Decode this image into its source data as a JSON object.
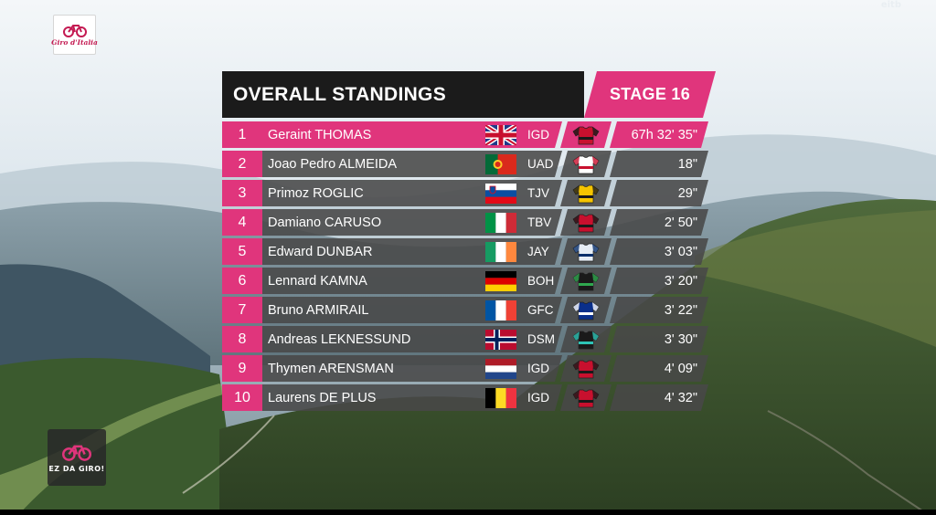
{
  "broadcast": {
    "race_logo_text": "Giro d'Italia",
    "live_ghost_text": "",
    "broadcaster": "eitb",
    "promo_label": "EZ DA GIRO!"
  },
  "board": {
    "title": "OVERALL STANDINGS",
    "stage": "STAGE 16"
  },
  "colors": {
    "accent_pink": "#e0357c",
    "header_black": "#1b1b1b",
    "row_grey": "#484848"
  },
  "standings": [
    {
      "rank": "1",
      "name": "Geraint THOMAS",
      "flag": "flag-gbr",
      "team": "IGD",
      "jersey": "ineos-jersey-icon",
      "time": "67h 32' 35\""
    },
    {
      "rank": "2",
      "name": "Joao Pedro ALMEIDA",
      "flag": "flag-por",
      "team": "UAD",
      "jersey": "uae-jersey-icon",
      "time": "18\""
    },
    {
      "rank": "3",
      "name": "Primoz ROGLIC",
      "flag": "flag-slo",
      "team": "TJV",
      "jersey": "jumbo-jersey-icon",
      "time": "29\""
    },
    {
      "rank": "4",
      "name": "Damiano CARUSO",
      "flag": "flag-ita",
      "team": "TBV",
      "jersey": "bahrain-jersey-icon",
      "time": "2' 50\""
    },
    {
      "rank": "5",
      "name": "Edward DUNBAR",
      "flag": "flag-irl",
      "team": "JAY",
      "jersey": "jayco-jersey-icon",
      "time": "3' 03\""
    },
    {
      "rank": "6",
      "name": "Lennard KAMNA",
      "flag": "flag-ger",
      "team": "BOH",
      "jersey": "bora-jersey-icon",
      "time": "3' 20\""
    },
    {
      "rank": "7",
      "name": "Bruno ARMIRAIL",
      "flag": "flag-fra",
      "team": "GFC",
      "jersey": "groupama-jersey-icon",
      "time": "3' 22\""
    },
    {
      "rank": "8",
      "name": "Andreas LEKNESSUND",
      "flag": "flag-nor",
      "team": "DSM",
      "jersey": "dsm-jersey-icon",
      "time": "3' 30\""
    },
    {
      "rank": "9",
      "name": "Thymen ARENSMAN",
      "flag": "flag-ned",
      "team": "IGD",
      "jersey": "ineos-jersey-icon",
      "time": "4' 09\""
    },
    {
      "rank": "10",
      "name": "Laurens DE PLUS",
      "flag": "flag-bel",
      "team": "IGD",
      "jersey": "ineos-jersey-icon",
      "time": "4' 32\""
    }
  ]
}
